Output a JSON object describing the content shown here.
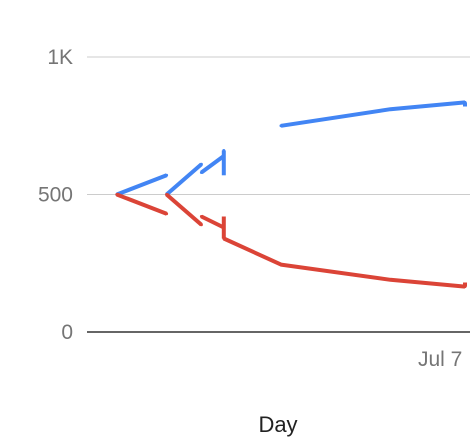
{
  "chart_data": {
    "type": "line",
    "title": "",
    "xlabel": "Day",
    "ylabel": "",
    "ylim": [
      0,
      1000
    ],
    "grid": true,
    "legend": "none",
    "y_ticks": [
      {
        "value": 0,
        "label": "0"
      },
      {
        "value": 500,
        "label": "500"
      },
      {
        "value": 1000,
        "label": "1K"
      }
    ],
    "x_ticks": [
      {
        "value": 7,
        "label": "Jul 7"
      }
    ],
    "xlim": [
      -0.1,
      7.6
    ],
    "series": [
      {
        "color": "#4285f4",
        "segments": [
          [
            [
              0.5,
              500
            ],
            [
              1.5,
              570
            ]
          ],
          [
            [
              1.5,
              500
            ],
            [
              2.2,
              610
            ]
          ],
          [
            [
              2.2,
              580
            ],
            [
              2.65,
              640
            ]
          ],
          [
            [
              2.65,
              570
            ],
            [
              2.65,
              660
            ]
          ],
          [
            [
              3.8,
              750
            ],
            [
              6,
              810
            ],
            [
              7.5,
              835
            ]
          ],
          [
            [
              7.5,
              820
            ],
            [
              7.5,
              835
            ]
          ]
        ],
        "points": [
          [
            0.5,
            500
          ],
          [
            1.5,
            570
          ],
          [
            1.5,
            500
          ],
          [
            2.2,
            610
          ],
          [
            2.2,
            580
          ],
          [
            2.65,
            640
          ],
          [
            2.65,
            660
          ],
          [
            3.8,
            750
          ],
          [
            6,
            810
          ],
          [
            7.5,
            835
          ]
        ]
      },
      {
        "color": "#db4437",
        "segments": [
          [
            [
              0.5,
              500
            ],
            [
              1.5,
              430
            ]
          ],
          [
            [
              1.5,
              500
            ],
            [
              2.2,
              390
            ]
          ],
          [
            [
              2.2,
              420
            ],
            [
              2.65,
              380
            ]
          ],
          [
            [
              2.65,
              420
            ],
            [
              2.65,
              340
            ]
          ],
          [
            [
              2.65,
              340
            ],
            [
              3.8,
              245
            ],
            [
              6,
              190
            ],
            [
              7.5,
              165
            ]
          ],
          [
            [
              7.5,
              180
            ],
            [
              7.5,
              165
            ]
          ]
        ],
        "points": [
          [
            0.5,
            500
          ],
          [
            1.5,
            430
          ],
          [
            1.5,
            500
          ],
          [
            2.2,
            390
          ],
          [
            2.2,
            420
          ],
          [
            2.65,
            380
          ],
          [
            2.65,
            340
          ],
          [
            3.8,
            245
          ],
          [
            6,
            190
          ],
          [
            7.5,
            165
          ]
        ]
      }
    ]
  },
  "colors": {
    "grid": "#cccccc",
    "baseline": "#333333",
    "tick_text": "#757575"
  }
}
